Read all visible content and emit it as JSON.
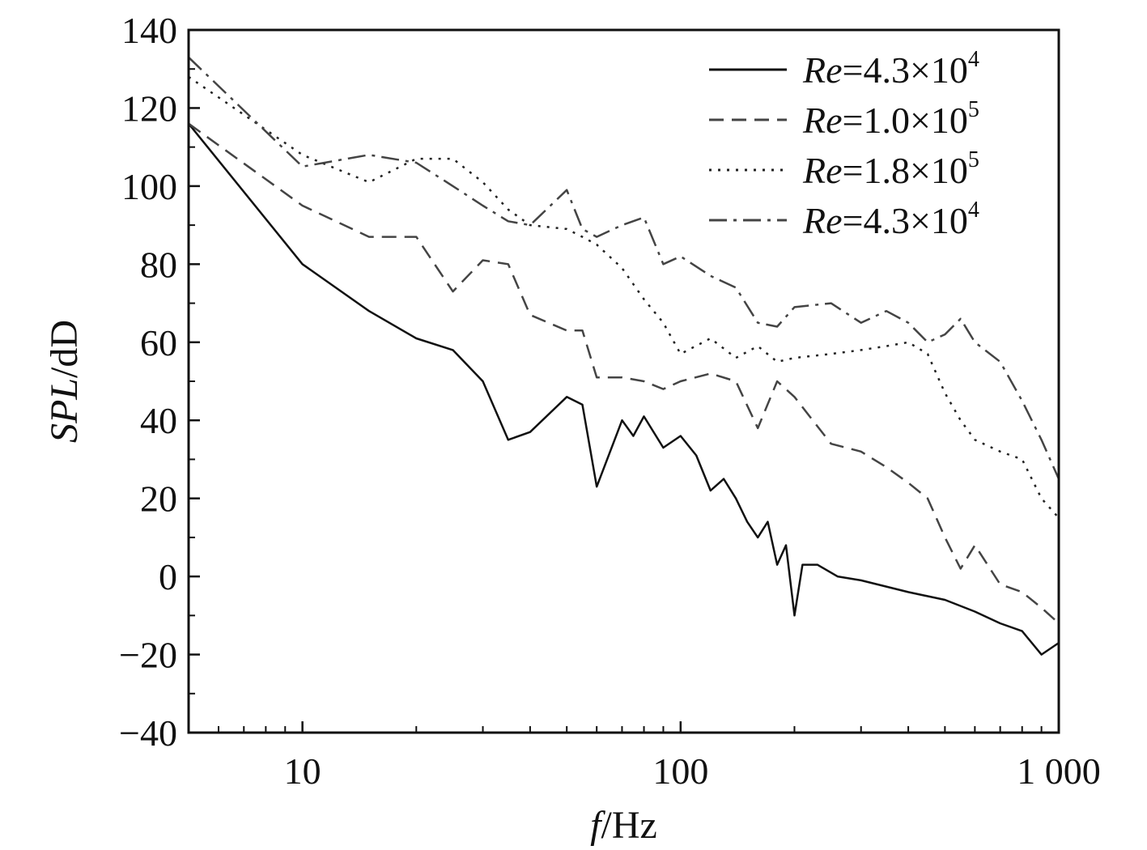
{
  "chart_data": {
    "type": "line",
    "title": "",
    "xlabel": {
      "italic": "f",
      "rest": "/Hz"
    },
    "ylabel": {
      "italic": "SPL",
      "rest": "/dD"
    },
    "xscale": "log",
    "xlim": [
      5,
      1000
    ],
    "ylim": [
      -40,
      140
    ],
    "x_ticks": [
      10,
      100,
      1000
    ],
    "x_tick_labels": [
      "10",
      "100",
      "1 000"
    ],
    "y_ticks": [
      -40,
      -20,
      0,
      20,
      40,
      60,
      80,
      100,
      120,
      140
    ],
    "y_tick_labels": [
      "−40",
      "−20",
      "0",
      "20",
      "40",
      "60",
      "80",
      "100",
      "120",
      "140"
    ],
    "legend_position": "top-right",
    "series": [
      {
        "name": "Re=4.3×10^4",
        "legend": {
          "italic": "Re",
          "text": "=4.3×10",
          "sup": "4"
        },
        "style": "solid",
        "color": "#111111",
        "x": [
          5,
          10,
          15,
          20,
          25,
          30,
          35,
          40,
          50,
          55,
          60,
          70,
          75,
          80,
          90,
          100,
          110,
          120,
          130,
          140,
          150,
          160,
          170,
          180,
          190,
          200,
          210,
          230,
          260,
          300,
          400,
          500,
          600,
          700,
          800,
          900,
          1000
        ],
        "y": [
          116,
          80,
          68,
          61,
          58,
          50,
          35,
          37,
          46,
          44,
          23,
          40,
          36,
          41,
          33,
          36,
          31,
          22,
          25,
          20,
          14,
          10,
          14,
          3,
          8,
          -10,
          3,
          3,
          0,
          -1,
          -4,
          -6,
          -9,
          -12,
          -14,
          -20,
          -17
        ]
      },
      {
        "name": "Re=1.0×10^5",
        "legend": {
          "italic": "Re",
          "text": "=1.0×10",
          "sup": "5"
        },
        "style": "dashed",
        "color": "#444444",
        "x": [
          5,
          10,
          15,
          20,
          25,
          30,
          35,
          40,
          50,
          55,
          60,
          70,
          80,
          90,
          100,
          120,
          140,
          160,
          180,
          200,
          250,
          300,
          350,
          400,
          450,
          500,
          550,
          600,
          700,
          800,
          900,
          1000
        ],
        "y": [
          116,
          95,
          87,
          87,
          73,
          81,
          80,
          67,
          63,
          63,
          51,
          51,
          50,
          48,
          50,
          52,
          50,
          38,
          50,
          46,
          34,
          32,
          28,
          24,
          20,
          10,
          2,
          8,
          -2,
          -4,
          -8,
          -12
        ]
      },
      {
        "name": "Re=1.8×10^5",
        "legend": {
          "italic": "Re",
          "text": "=1.8×10",
          "sup": "5"
        },
        "style": "dotted",
        "color": "#222222",
        "x": [
          5,
          10,
          15,
          20,
          25,
          30,
          35,
          40,
          50,
          55,
          60,
          70,
          80,
          90,
          100,
          120,
          140,
          160,
          180,
          200,
          250,
          300,
          350,
          400,
          450,
          500,
          550,
          600,
          700,
          800,
          900,
          1000
        ],
        "y": [
          128,
          108,
          101,
          107,
          107,
          101,
          94,
          90,
          89,
          87,
          85,
          79,
          71,
          65,
          57,
          61,
          56,
          59,
          55,
          56,
          57,
          58,
          59,
          60,
          57,
          47,
          40,
          35,
          32,
          30,
          20,
          15
        ]
      },
      {
        "name": "Re=4.3×10^4",
        "legend": {
          "italic": "Re",
          "text": "=4.3×10",
          "sup": "4"
        },
        "style": "dashdot",
        "color": "#444444",
        "x": [
          5,
          10,
          15,
          20,
          25,
          30,
          35,
          40,
          50,
          55,
          60,
          70,
          80,
          90,
          100,
          120,
          140,
          160,
          180,
          200,
          250,
          300,
          350,
          400,
          450,
          500,
          550,
          600,
          700,
          800,
          900,
          1000
        ],
        "y": [
          133,
          105,
          108,
          106,
          100,
          95,
          91,
          90,
          99,
          89,
          87,
          90,
          92,
          80,
          82,
          77,
          74,
          65,
          64,
          69,
          70,
          65,
          68,
          65,
          60,
          62,
          66,
          60,
          55,
          45,
          35,
          25
        ]
      }
    ]
  }
}
